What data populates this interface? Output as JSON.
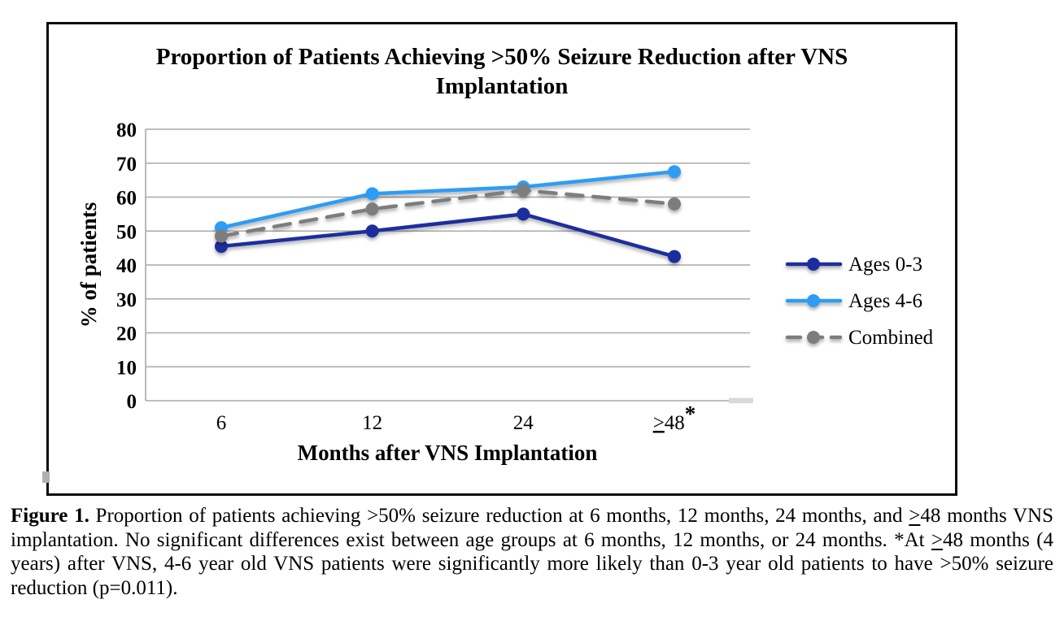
{
  "figure": {
    "caption_segments": [
      {
        "t": "Figure 1.",
        "b": true
      },
      {
        "t": " Proportion of patients achieving >50% seizure reduction at 6 months, 12 months, 24 months, and "
      },
      {
        "t": ">",
        "u": true
      },
      {
        "t": "48 months VNS implantation. No significant differences exist between age groups at 6 months, 12 months, or 24 months. *At "
      },
      {
        "t": ">",
        "u": true
      },
      {
        "t": "48 months (4 years) after VNS, 4-6 year old VNS patients were significantly more likely than 0-3 year old patients to have >50% seizure reduction (p=0.011)."
      }
    ]
  },
  "chart_data": {
    "type": "line",
    "title": "Proportion of Patients Achieving >50% Seizure Reduction after VNS Implantation",
    "xlabel": "Months after VNS Implantation",
    "ylabel": "% of patients",
    "categories": [
      "6",
      "12",
      "24",
      "≥48*"
    ],
    "ylim": [
      0,
      80
    ],
    "yticks": [
      0,
      10,
      20,
      30,
      40,
      50,
      60,
      70,
      80
    ],
    "grid": true,
    "legend_position": "right",
    "gridline_color": "#A9A9A9",
    "series": [
      {
        "name": "Ages 0-3",
        "color": "#1C2D9E",
        "dash": null,
        "values": [
          45.5,
          50,
          55,
          42.5
        ]
      },
      {
        "name": "Ages 4-6",
        "color": "#2F9CF5",
        "dash": null,
        "values": [
          51,
          61,
          63,
          67.5
        ]
      },
      {
        "name": "Combined",
        "color": "#7D7D7D",
        "dash": "20 13",
        "values": [
          48.5,
          56.5,
          62,
          58
        ]
      }
    ]
  }
}
